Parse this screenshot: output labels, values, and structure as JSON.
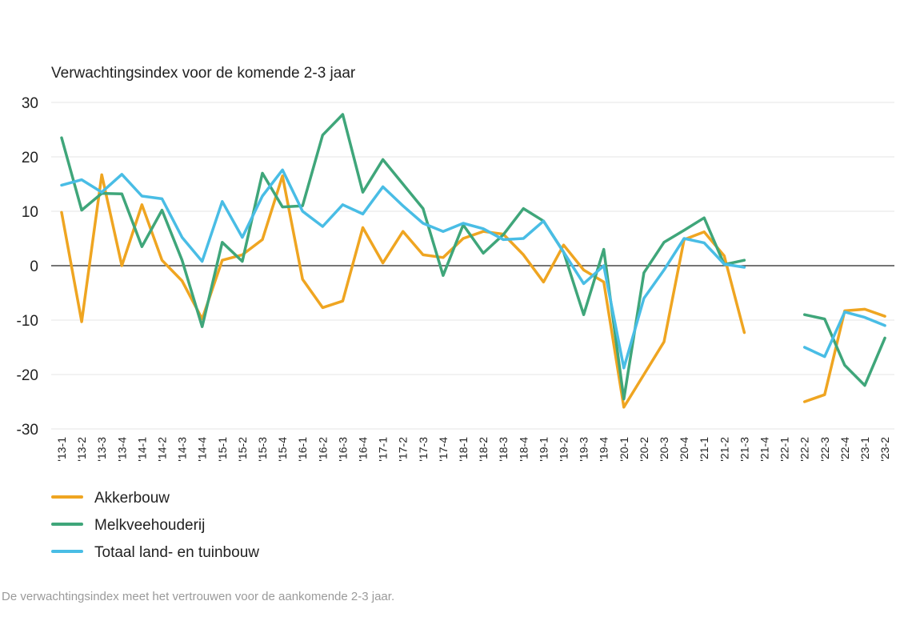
{
  "chart_data": {
    "type": "line",
    "title": "Verwachtingsindex voor de komende 2-3 jaar",
    "xlabel": "",
    "ylabel": "",
    "ylim": [
      -30,
      30
    ],
    "yticks": [
      30,
      20,
      10,
      0,
      -10,
      -20,
      -30
    ],
    "ytick_labels": [
      "30",
      "20",
      "10",
      "0",
      "-10",
      "-20",
      "-30"
    ],
    "grid": true,
    "legend_position": "bottom-left",
    "categories": [
      "'13-1",
      "'13-2",
      "'13-3",
      "'13-4",
      "'14-1",
      "'14-2",
      "'14-3",
      "'14-4",
      "'15-1",
      "'15-2",
      "'15-3",
      "'15-4",
      "'16-1",
      "'16-2",
      "'16-3",
      "'16-4",
      "'17-1",
      "'17-2",
      "'17-3",
      "'17-4",
      "'18-1",
      "'18-2",
      "'18-3",
      "'18-4",
      "'19-1",
      "'19-2",
      "'19-3",
      "'19-4",
      "'20-1",
      "'20-2",
      "'20-3",
      "'20-4",
      "'21-1",
      "'21-2",
      "'21-3",
      "'21-4",
      "'22-1",
      "'22-2",
      "'22-3",
      "'22-4",
      "'23-1",
      "'23-2"
    ],
    "series": [
      {
        "name": "Akkerbouw",
        "color": "#EFA521",
        "values": [
          9.8,
          -10.3,
          16.7,
          0,
          11.2,
          1,
          -2.8,
          -9.8,
          1,
          2,
          4.8,
          16.5,
          -2.5,
          -7.7,
          -6.5,
          7,
          0.5,
          6.3,
          2,
          1.5,
          5,
          6.3,
          5.8,
          2,
          -3,
          3.8,
          -0.8,
          -3,
          -26,
          -20,
          -14,
          4.8,
          6.2,
          1.8,
          -12.3,
          null,
          null,
          -25,
          -23.7,
          -8.3,
          -8,
          -9.3
        ],
        "note": "gap '21-4 to '22-1"
      },
      {
        "name": "Melkveehouderij",
        "color": "#3FA67A",
        "values": [
          23.5,
          10.2,
          13.3,
          13.2,
          3.5,
          10.2,
          1,
          -11.2,
          4.3,
          0.8,
          17,
          10.8,
          11,
          24,
          27.8,
          13.5,
          19.5,
          15,
          10.5,
          -1.8,
          7.5,
          2.3,
          5.7,
          10.5,
          8.2,
          2.5,
          -9,
          3,
          -24.5,
          -1.3,
          4.3,
          6.5,
          8.8,
          0.2,
          1,
          null,
          null,
          -9,
          -9.8,
          -18.3,
          -22,
          -13.3
        ]
      },
      {
        "name": "Totaal land- en tuinbouw",
        "color": "#49BDE5",
        "values": [
          14.8,
          15.8,
          13.5,
          16.8,
          12.8,
          12.3,
          5.2,
          0.8,
          11.8,
          5.2,
          12.8,
          17.6,
          10,
          7.2,
          11.2,
          9.5,
          14.5,
          11,
          7.8,
          6.3,
          7.8,
          6.8,
          4.8,
          5,
          8.2,
          2.5,
          -3.3,
          0,
          -18.8,
          -6,
          -0.8,
          5,
          4.2,
          0.3,
          -0.3,
          null,
          null,
          -15,
          -16.7,
          -8.5,
          -9.5,
          -11
        ]
      }
    ]
  },
  "footnote": "De verwachtingsindex meet het vertrouwen voor de aankomende 2-3 jaar."
}
